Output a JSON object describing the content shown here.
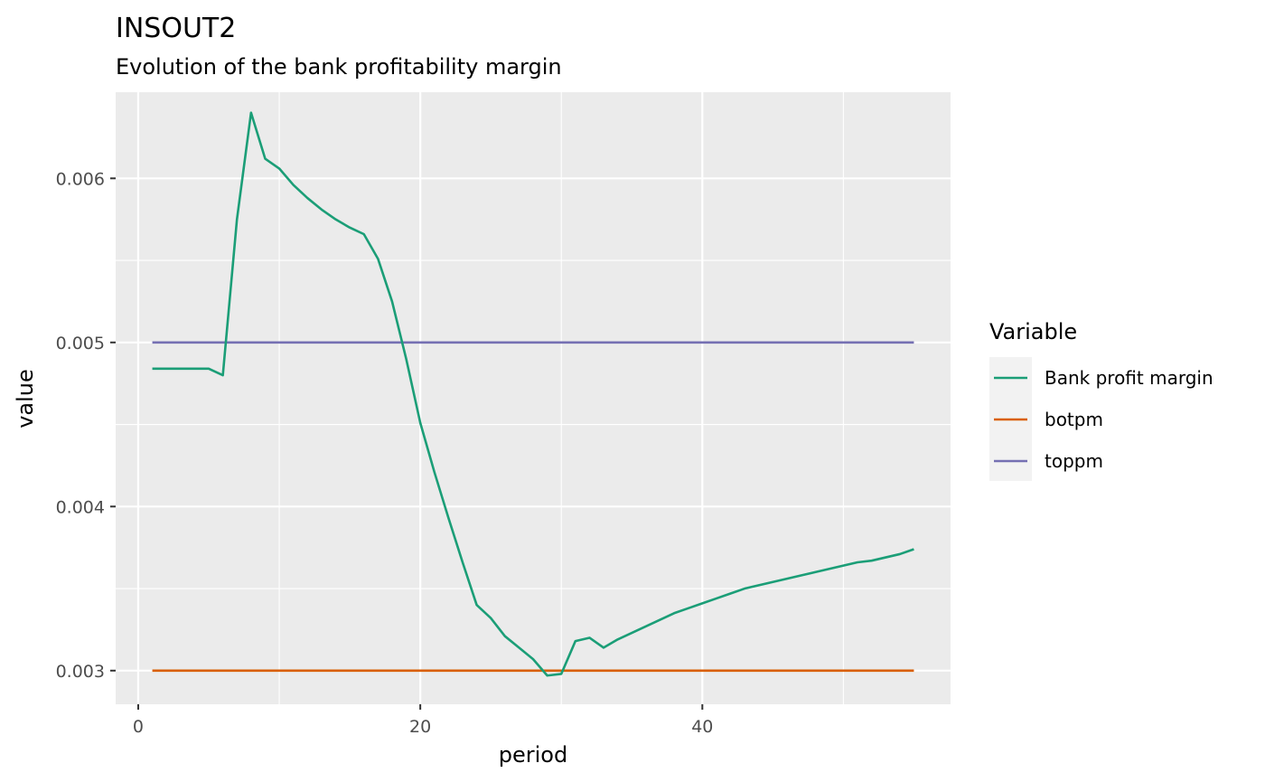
{
  "chart_data": {
    "type": "line",
    "title": "INSOUT2",
    "subtitle": "Evolution of the bank profitability margin",
    "xlabel": "period",
    "ylabel": "value",
    "xlim": [
      -1.6,
      57.6
    ],
    "ylim": [
      0.002795,
      0.006525
    ],
    "x_ticks": [
      0,
      20,
      40
    ],
    "x_tick_labels": [
      "0",
      "20",
      "40"
    ],
    "x_minor_ticks": [
      10,
      30,
      50
    ],
    "y_ticks": [
      0.003,
      0.004,
      0.005,
      0.006
    ],
    "y_tick_labels": [
      "0.003",
      "0.004",
      "0.005",
      "0.006"
    ],
    "y_minor_ticks": [
      0.0035,
      0.0045,
      0.0055
    ],
    "grid": true,
    "legend": {
      "title": "Variable",
      "position": "right"
    },
    "series": [
      {
        "name": "Bank profit margin",
        "color": "#1b9e77",
        "x": [
          1,
          2,
          3,
          4,
          5,
          6,
          7,
          8,
          9,
          10,
          11,
          12,
          13,
          14,
          15,
          16,
          17,
          18,
          19,
          20,
          21,
          22,
          23,
          24,
          25,
          26,
          27,
          28,
          29,
          30,
          31,
          32,
          33,
          34,
          35,
          36,
          37,
          38,
          39,
          40,
          41,
          42,
          43,
          44,
          45,
          46,
          47,
          48,
          49,
          50,
          51,
          52,
          53,
          54,
          55
        ],
        "values": [
          0.00484,
          0.00484,
          0.00484,
          0.00484,
          0.00484,
          0.0048,
          0.00575,
          0.0064,
          0.00612,
          0.00606,
          0.00596,
          0.00588,
          0.00581,
          0.00575,
          0.0057,
          0.00566,
          0.00551,
          0.00525,
          0.0049,
          0.00451,
          0.00421,
          0.00393,
          0.00366,
          0.0034,
          0.00332,
          0.00321,
          0.00314,
          0.00307,
          0.00297,
          0.00298,
          0.00318,
          0.0032,
          0.00314,
          0.00319,
          0.00323,
          0.00327,
          0.00331,
          0.00335,
          0.00338,
          0.00341,
          0.00344,
          0.00347,
          0.0035,
          0.00352,
          0.00354,
          0.00356,
          0.00358,
          0.0036,
          0.00362,
          0.00364,
          0.00366,
          0.00367,
          0.00369,
          0.00371,
          0.00374
        ]
      },
      {
        "name": "botpm",
        "color": "#d95f02",
        "x": [
          1,
          55
        ],
        "values": [
          0.003,
          0.003
        ]
      },
      {
        "name": "toppm",
        "color": "#7570b3",
        "x": [
          1,
          55
        ],
        "values": [
          0.005,
          0.005
        ]
      }
    ]
  }
}
